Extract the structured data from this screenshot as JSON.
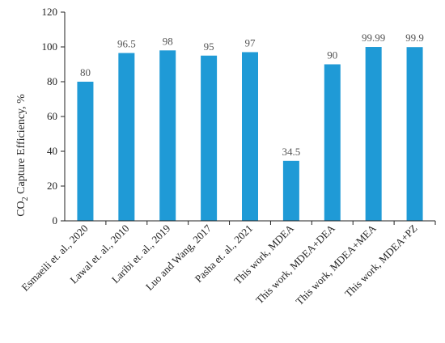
{
  "chart_data": {
    "type": "bar",
    "categories": [
      "Esmaeili et. al., 2020",
      "Lawal et. al., 2010",
      "Laribi et. al., 2019",
      "Luo and Wang, 2017",
      "Pasha et. al., 2021",
      "This work, MDEA",
      "This work, MDEA+DEA",
      "This work, MDEA+MEA",
      "This work, MDEA+PZ"
    ],
    "values": [
      80,
      96.5,
      98,
      95,
      97,
      34.5,
      90,
      99.99,
      99.9
    ],
    "data_labels": [
      "80",
      "96.5",
      "98",
      "95",
      "97",
      "34.5",
      "90",
      "99.99",
      "99.9"
    ],
    "title": "",
    "xlabel": "",
    "ylabel": {
      "prefix": "CO",
      "subscript": "2",
      "suffix": " Capture Efficiency, %"
    },
    "ylim": [
      0,
      120
    ],
    "yticks": [
      "0",
      "20",
      "40",
      "60",
      "80",
      "100",
      "120"
    ],
    "grid": false,
    "legend": "none",
    "colors": {
      "bar": "#1f9ad6",
      "axis": "#222222",
      "data_label": "#555555"
    }
  }
}
